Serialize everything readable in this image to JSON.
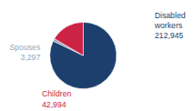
{
  "chart_data": {
    "type": "pie",
    "categories": [
      "Disabled\nworkers",
      "Spouses",
      "Children"
    ],
    "values": [
      212945,
      3297,
      42994
    ],
    "value_labels": [
      "212,945",
      "3,297",
      "42,994"
    ],
    "colors": [
      "#1c3f6e",
      "#8fa8bc",
      "#cc2244"
    ],
    "data_labels": true
  }
}
